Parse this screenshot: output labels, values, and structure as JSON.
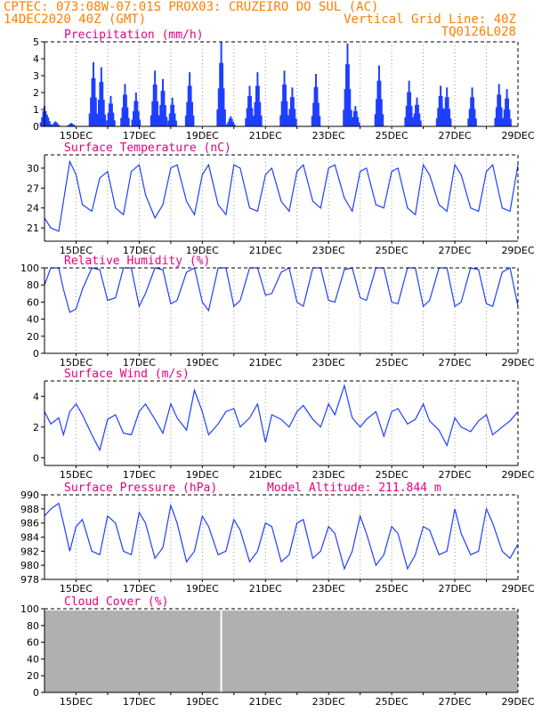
{
  "header": {
    "line1_left": "CPTEC:   073:08W-07:01S   PROX03: CRUZEIRO DO SUL (AC)",
    "line2_left": "14DEC2020 40Z (GMT)",
    "line2_right": "Vertical Grid Line: 40Z",
    "line3_right": "TQ0126L028"
  },
  "colors": {
    "header_text": "#ff7f00",
    "panel_title": "#e6007e",
    "series_line": "#1f3fff",
    "cloud_fill": "#b0b0b0",
    "grid": "#999999"
  },
  "x_axis": {
    "labels": [
      "15DEC",
      "17DEC",
      "19DEC",
      "21DEC",
      "23DEC",
      "25DEC",
      "27DEC",
      "29DEC"
    ],
    "label_days": [
      1,
      3,
      5,
      7,
      9,
      11,
      13,
      15
    ],
    "grid_days": [
      1,
      2,
      3,
      4,
      5,
      6,
      7,
      8,
      9,
      10,
      11,
      12,
      13,
      14
    ],
    "range_days": [
      0,
      15
    ]
  },
  "chart_data": [
    {
      "type": "bar",
      "title": "Precipitation (mm/h)",
      "ylim": [
        0,
        5
      ],
      "yticks": [
        0,
        1,
        2,
        3,
        4,
        5
      ],
      "bursts": [
        {
          "day": 0.0,
          "peak": 1.2
        },
        {
          "day": 0.08,
          "peak": 0.7
        },
        {
          "day": 0.35,
          "peak": 0.3
        },
        {
          "day": 0.85,
          "peak": 0.2
        },
        {
          "day": 1.55,
          "peak": 3.8
        },
        {
          "day": 1.8,
          "peak": 3.5
        },
        {
          "day": 2.1,
          "peak": 1.8
        },
        {
          "day": 2.55,
          "peak": 2.5
        },
        {
          "day": 2.9,
          "peak": 2.0
        },
        {
          "day": 3.5,
          "peak": 3.3
        },
        {
          "day": 3.75,
          "peak": 2.8
        },
        {
          "day": 4.05,
          "peak": 1.7
        },
        {
          "day": 4.6,
          "peak": 3.2
        },
        {
          "day": 5.6,
          "peak": 5.0
        },
        {
          "day": 5.9,
          "peak": 0.6
        },
        {
          "day": 6.5,
          "peak": 2.4
        },
        {
          "day": 6.75,
          "peak": 3.2
        },
        {
          "day": 7.6,
          "peak": 3.3
        },
        {
          "day": 7.85,
          "peak": 2.3
        },
        {
          "day": 8.6,
          "peak": 3.1
        },
        {
          "day": 9.6,
          "peak": 4.9
        },
        {
          "day": 9.85,
          "peak": 1.2
        },
        {
          "day": 10.6,
          "peak": 3.6
        },
        {
          "day": 11.55,
          "peak": 2.7
        },
        {
          "day": 11.8,
          "peak": 1.7
        },
        {
          "day": 12.55,
          "peak": 2.4
        },
        {
          "day": 12.75,
          "peak": 2.3
        },
        {
          "day": 13.55,
          "peak": 2.3
        },
        {
          "day": 14.4,
          "peak": 2.5
        },
        {
          "day": 14.65,
          "peak": 2.2
        }
      ]
    },
    {
      "type": "line",
      "title": "Surface Temperature (nC)",
      "ylim": [
        19,
        32
      ],
      "yticks": [
        21,
        24,
        27,
        30
      ],
      "x_days": [
        0,
        0.2,
        0.45,
        0.6,
        0.8,
        1.0,
        1.2,
        1.5,
        1.75,
        2.0,
        2.25,
        2.5,
        2.75,
        3.0,
        3.2,
        3.5,
        3.75,
        4.0,
        4.2,
        4.5,
        4.75,
        5.0,
        5.2,
        5.5,
        5.75,
        6.0,
        6.2,
        6.5,
        6.75,
        7.0,
        7.2,
        7.5,
        7.75,
        8.0,
        8.2,
        8.5,
        8.75,
        9.0,
        9.2,
        9.5,
        9.75,
        10.0,
        10.2,
        10.5,
        10.75,
        11.0,
        11.2,
        11.5,
        11.75,
        12.0,
        12.2,
        12.5,
        12.75,
        13.0,
        13.2,
        13.5,
        13.75,
        14.0,
        14.2,
        14.5,
        14.75,
        15.0
      ],
      "values": [
        22.5,
        21.0,
        20.5,
        25.0,
        31.0,
        29.0,
        24.5,
        23.5,
        28.5,
        29.5,
        24.0,
        23.0,
        29.5,
        30.5,
        26.0,
        22.5,
        24.5,
        30.0,
        30.5,
        25.0,
        23.0,
        29.0,
        30.5,
        24.5,
        23.0,
        30.5,
        30.0,
        24.0,
        23.5,
        29.0,
        30.0,
        25.0,
        23.5,
        29.5,
        30.5,
        25.0,
        24.0,
        30.0,
        30.5,
        25.5,
        23.5,
        29.5,
        30.0,
        24.5,
        24.0,
        29.5,
        30.0,
        24.0,
        23.0,
        30.5,
        29.0,
        24.5,
        23.5,
        30.5,
        29.0,
        24.0,
        23.5,
        29.5,
        30.5,
        24.0,
        23.5,
        30.5
      ]
    },
    {
      "type": "line",
      "title": "Relative Humidity (%)",
      "ylim": [
        0,
        100
      ],
      "yticks": [
        0,
        20,
        40,
        60,
        80,
        100
      ],
      "x_days": [
        0,
        0.2,
        0.45,
        0.6,
        0.8,
        1.0,
        1.2,
        1.5,
        1.75,
        2.0,
        2.25,
        2.5,
        2.75,
        3.0,
        3.2,
        3.5,
        3.75,
        4.0,
        4.2,
        4.5,
        4.75,
        5.0,
        5.2,
        5.5,
        5.75,
        6.0,
        6.2,
        6.5,
        6.75,
        7.0,
        7.2,
        7.5,
        7.75,
        8.0,
        8.2,
        8.5,
        8.75,
        9.0,
        9.2,
        9.5,
        9.75,
        10.0,
        10.2,
        10.5,
        10.75,
        11.0,
        11.2,
        11.5,
        11.75,
        12.0,
        12.2,
        12.5,
        12.75,
        13.0,
        13.2,
        13.5,
        13.75,
        14.0,
        14.2,
        14.5,
        14.75,
        15.0
      ],
      "values": [
        80,
        100,
        100,
        75,
        48,
        52,
        75,
        100,
        98,
        62,
        65,
        100,
        100,
        55,
        70,
        100,
        98,
        58,
        62,
        95,
        100,
        60,
        50,
        100,
        100,
        55,
        62,
        100,
        100,
        68,
        70,
        95,
        100,
        60,
        55,
        100,
        100,
        62,
        60,
        98,
        100,
        65,
        62,
        100,
        100,
        60,
        58,
        100,
        100,
        55,
        62,
        100,
        100,
        55,
        60,
        100,
        98,
        58,
        55,
        95,
        100,
        55
      ]
    },
    {
      "type": "line",
      "title": "Surface Wind (m/s)",
      "ylim": [
        -0.5,
        5
      ],
      "yticks": [
        0,
        2,
        4
      ],
      "x_days": [
        0,
        0.2,
        0.45,
        0.6,
        0.8,
        1.0,
        1.2,
        1.5,
        1.75,
        2.0,
        2.25,
        2.5,
        2.75,
        3.0,
        3.2,
        3.5,
        3.75,
        4.0,
        4.2,
        4.5,
        4.75,
        5.0,
        5.2,
        5.5,
        5.75,
        6.0,
        6.2,
        6.5,
        6.75,
        7.0,
        7.2,
        7.5,
        7.75,
        8.0,
        8.2,
        8.5,
        8.75,
        9.0,
        9.2,
        9.5,
        9.75,
        10.0,
        10.2,
        10.5,
        10.75,
        11.0,
        11.2,
        11.5,
        11.75,
        12.0,
        12.2,
        12.5,
        12.75,
        13.0,
        13.2,
        13.5,
        13.75,
        14.0,
        14.2,
        14.5,
        14.75,
        15.0
      ],
      "values": [
        3.0,
        2.2,
        2.6,
        1.5,
        3.0,
        3.5,
        2.8,
        1.5,
        0.5,
        2.5,
        2.8,
        1.6,
        1.5,
        3.0,
        3.5,
        2.5,
        1.6,
        3.5,
        2.6,
        1.8,
        4.4,
        3.0,
        1.5,
        2.2,
        3.0,
        3.2,
        2.0,
        2.6,
        3.5,
        1.0,
        2.8,
        2.5,
        2.0,
        3.0,
        3.4,
        2.5,
        2.0,
        3.5,
        2.8,
        4.7,
        2.6,
        2.0,
        2.5,
        3.0,
        1.4,
        3.0,
        3.2,
        2.2,
        2.5,
        3.5,
        2.4,
        1.8,
        0.8,
        2.6,
        2.0,
        1.7,
        2.4,
        2.8,
        1.5,
        2.0,
        2.4,
        3.0
      ]
    },
    {
      "type": "line",
      "title": "Surface Pressure (hPa)",
      "annotation": "Model Altitude: 211.844 m",
      "ylim": [
        978,
        990
      ],
      "yticks": [
        978,
        980,
        982,
        984,
        986,
        988,
        990
      ],
      "x_days": [
        0,
        0.2,
        0.45,
        0.6,
        0.8,
        1.0,
        1.2,
        1.5,
        1.75,
        2.0,
        2.25,
        2.5,
        2.75,
        3.0,
        3.2,
        3.5,
        3.75,
        4.0,
        4.2,
        4.5,
        4.75,
        5.0,
        5.2,
        5.5,
        5.75,
        6.0,
        6.2,
        6.5,
        6.75,
        7.0,
        7.2,
        7.5,
        7.75,
        8.0,
        8.2,
        8.5,
        8.75,
        9.0,
        9.2,
        9.5,
        9.75,
        10.0,
        10.2,
        10.5,
        10.75,
        11.0,
        11.2,
        11.5,
        11.75,
        12.0,
        12.2,
        12.5,
        12.75,
        13.0,
        13.2,
        13.5,
        13.75,
        14.0,
        14.2,
        14.5,
        14.75,
        15.0
      ],
      "values": [
        987.0,
        988.0,
        988.8,
        986.0,
        982.0,
        985.5,
        986.5,
        982.0,
        981.5,
        987.0,
        986.0,
        982.0,
        981.5,
        987.5,
        986.0,
        981.0,
        982.5,
        988.5,
        986.0,
        980.5,
        982.0,
        987.0,
        985.5,
        981.5,
        982.0,
        986.5,
        985.0,
        980.5,
        982.0,
        986.0,
        985.5,
        980.5,
        981.5,
        986.0,
        986.5,
        981.0,
        982.0,
        985.5,
        984.5,
        979.5,
        982.0,
        987.0,
        984.5,
        980.0,
        981.5,
        985.5,
        984.5,
        979.5,
        981.5,
        985.5,
        985.0,
        981.5,
        982.0,
        988.0,
        984.5,
        981.5,
        982.0,
        988.0,
        986.0,
        982.0,
        981.0,
        983.0
      ]
    },
    {
      "type": "area",
      "title": "Cloud Cover (%)",
      "ylim": [
        0,
        100
      ],
      "yticks": [
        0,
        20,
        40,
        60,
        80,
        100
      ],
      "typical_value": 98,
      "gaps": [
        {
          "day": 5.6,
          "value": 0
        }
      ]
    }
  ]
}
